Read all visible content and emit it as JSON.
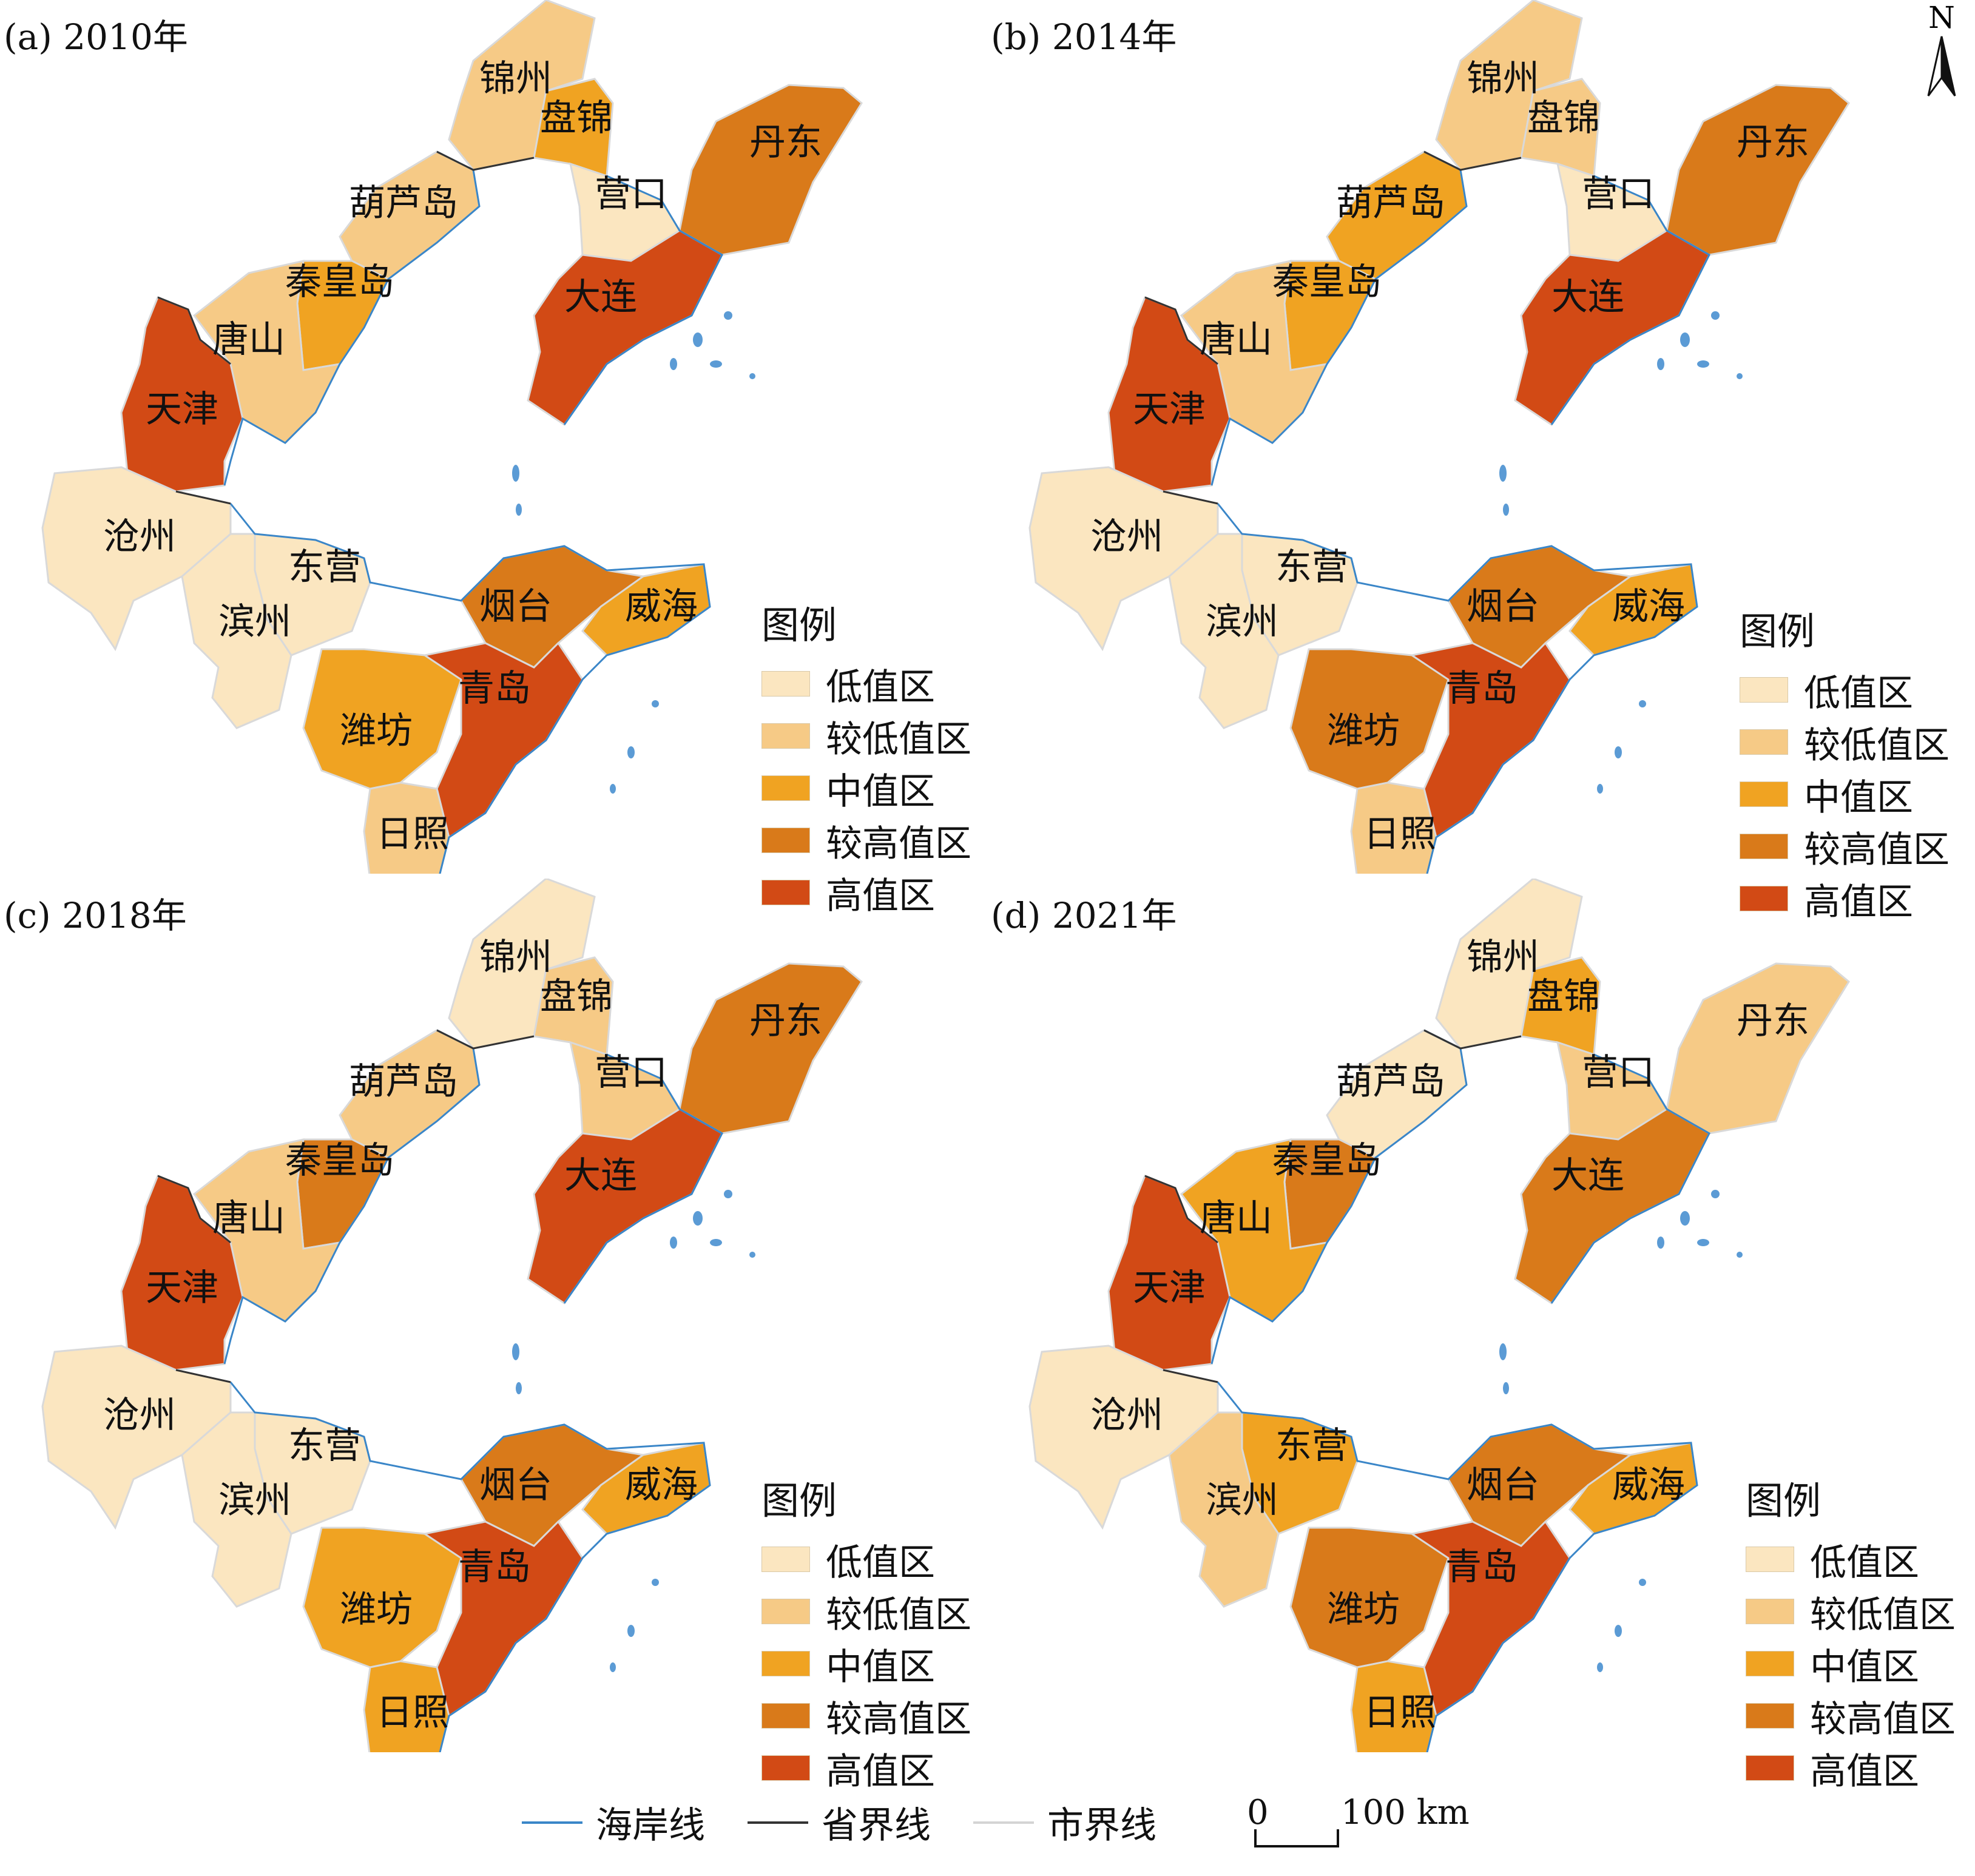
{
  "panels": [
    {
      "id": "a",
      "title": "(a) 2010年",
      "classes": {
        "锦州": "较低值区",
        "盘锦": "中值区",
        "营口": "低值区",
        "丹东": "较高值区",
        "葫芦岛": "较低值区",
        "秦皇岛": "中值区",
        "唐山": "较低值区",
        "天津": "高值区",
        "大连": "高值区",
        "沧州": "低值区",
        "东营": "低值区",
        "滨州": "低值区",
        "烟台": "较高值区",
        "威海": "中值区",
        "潍坊": "中值区",
        "青岛": "高值区",
        "日照": "较低值区"
      }
    },
    {
      "id": "b",
      "title": "(b) 2014年",
      "classes": {
        "锦州": "较低值区",
        "盘锦": "较低值区",
        "营口": "低值区",
        "丹东": "较高值区",
        "葫芦岛": "中值区",
        "秦皇岛": "中值区",
        "唐山": "较低值区",
        "天津": "高值区",
        "大连": "高值区",
        "沧州": "低值区",
        "东营": "低值区",
        "滨州": "低值区",
        "烟台": "较高值区",
        "威海": "中值区",
        "潍坊": "较高值区",
        "青岛": "高值区",
        "日照": "较低值区"
      }
    },
    {
      "id": "c",
      "title": "(c) 2018年",
      "classes": {
        "锦州": "低值区",
        "盘锦": "较低值区",
        "营口": "较低值区",
        "丹东": "较高值区",
        "葫芦岛": "较低值区",
        "秦皇岛": "较高值区",
        "唐山": "较低值区",
        "天津": "高值区",
        "大连": "高值区",
        "沧州": "低值区",
        "东营": "低值区",
        "滨州": "低值区",
        "烟台": "较高值区",
        "威海": "中值区",
        "潍坊": "中值区",
        "青岛": "高值区",
        "日照": "中值区"
      }
    },
    {
      "id": "d",
      "title": "(d) 2021年",
      "classes": {
        "锦州": "低值区",
        "盘锦": "中值区",
        "营口": "较低值区",
        "丹东": "较低值区",
        "葫芦岛": "低值区",
        "秦皇岛": "较高值区",
        "唐山": "中值区",
        "天津": "高值区",
        "大连": "较高值区",
        "沧州": "低值区",
        "东营": "中值区",
        "滨州": "较低值区",
        "烟台": "较高值区",
        "威海": "中值区",
        "潍坊": "较高值区",
        "青岛": "高值区",
        "日照": "中值区"
      }
    }
  ],
  "legend": {
    "title": "图例",
    "items": [
      {
        "label": "低值区",
        "color": "#fbe6c0"
      },
      {
        "label": "较低值区",
        "color": "#f6ca86"
      },
      {
        "label": "中值区",
        "color": "#f0a322"
      },
      {
        "label": "较高值区",
        "color": "#d97a1a"
      },
      {
        "label": "高值区",
        "color": "#d24a15"
      }
    ]
  },
  "line_legend": [
    {
      "label": "海岸线",
      "color": "#3a86c8"
    },
    {
      "label": "省界线",
      "color": "#333333"
    },
    {
      "label": "市界线",
      "color": "#dcdcdc"
    }
  ],
  "scale_bar": {
    "start": "0",
    "end": "100 km"
  },
  "north_label": "N"
}
